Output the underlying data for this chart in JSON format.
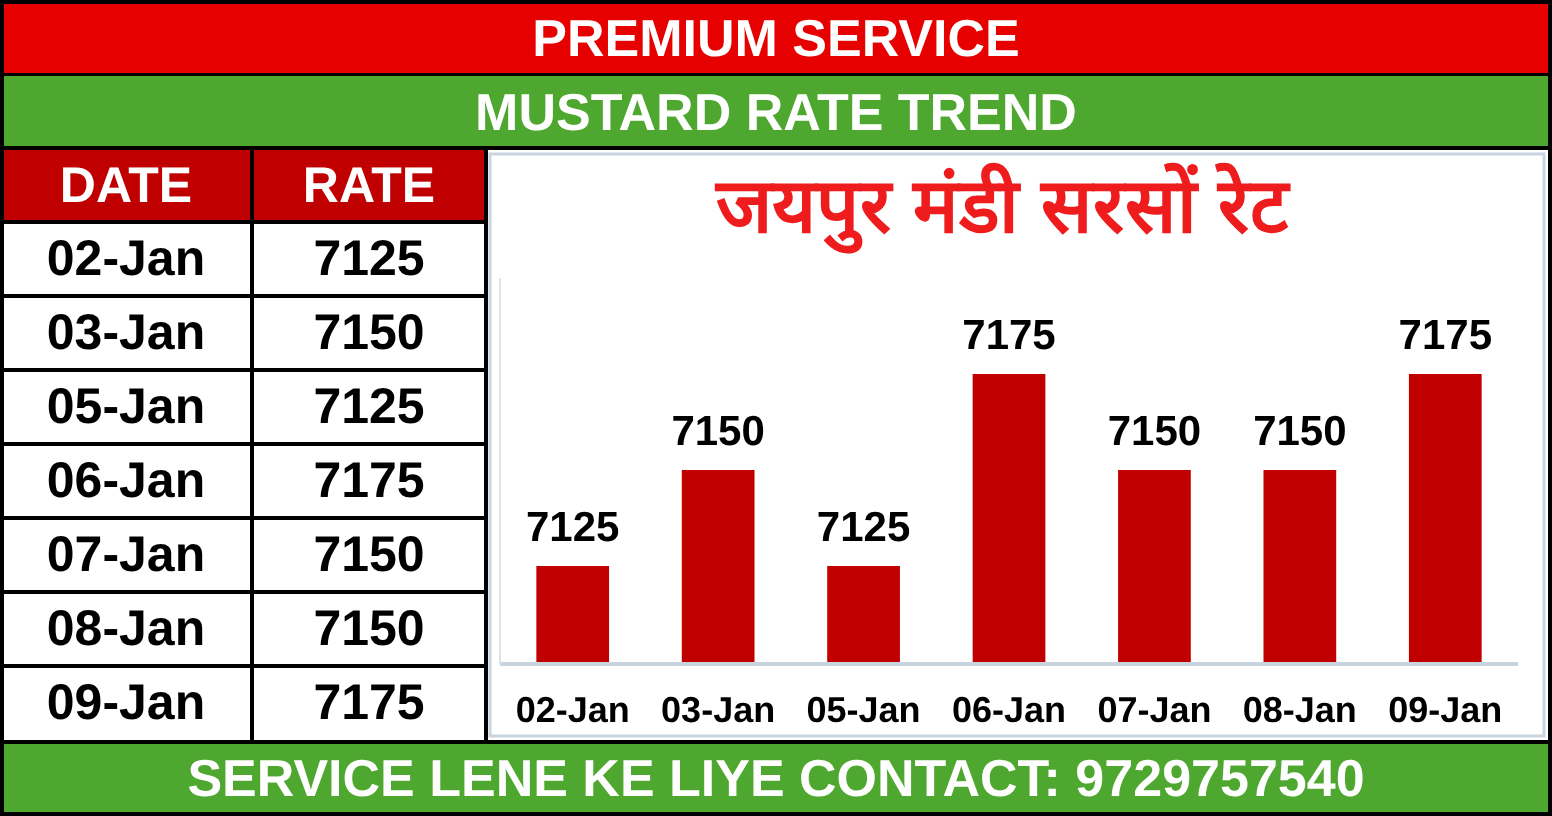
{
  "chart_data": [
    {
      "type": "other",
      "annotations": [
        "DATE",
        "RATE",
        "02-Jan",
        "7125",
        "03-Jan",
        "7150",
        "05-Jan",
        "7125",
        "06-Jan",
        "7175",
        "07-Jan",
        "7150",
        "08-Jan",
        "7150",
        "09-Jan",
        "7175"
      ]
    },
    {
      "type": "bar",
      "title": "MUSTARD RATE TREND",
      "subtitle": "जयपुर मंडी सरसों रेट",
      "annotations": [
        "PREMIUM SERVICE",
        "SERVICE LENE KE LIYE CONTACT: 9729757540"
      ],
      "categories": [
        "02-Jan",
        "03-Jan",
        "05-Jan",
        "06-Jan",
        "07-Jan",
        "08-Jan",
        "09-Jan"
      ],
      "values": [
        7125,
        7150,
        7125,
        7175,
        7150,
        7150,
        7175
      ],
      "color": "#c00000",
      "ylim": [
        7100,
        7200
      ],
      "data_labels": true,
      "tick_labels": "x"
    }
  ]
}
